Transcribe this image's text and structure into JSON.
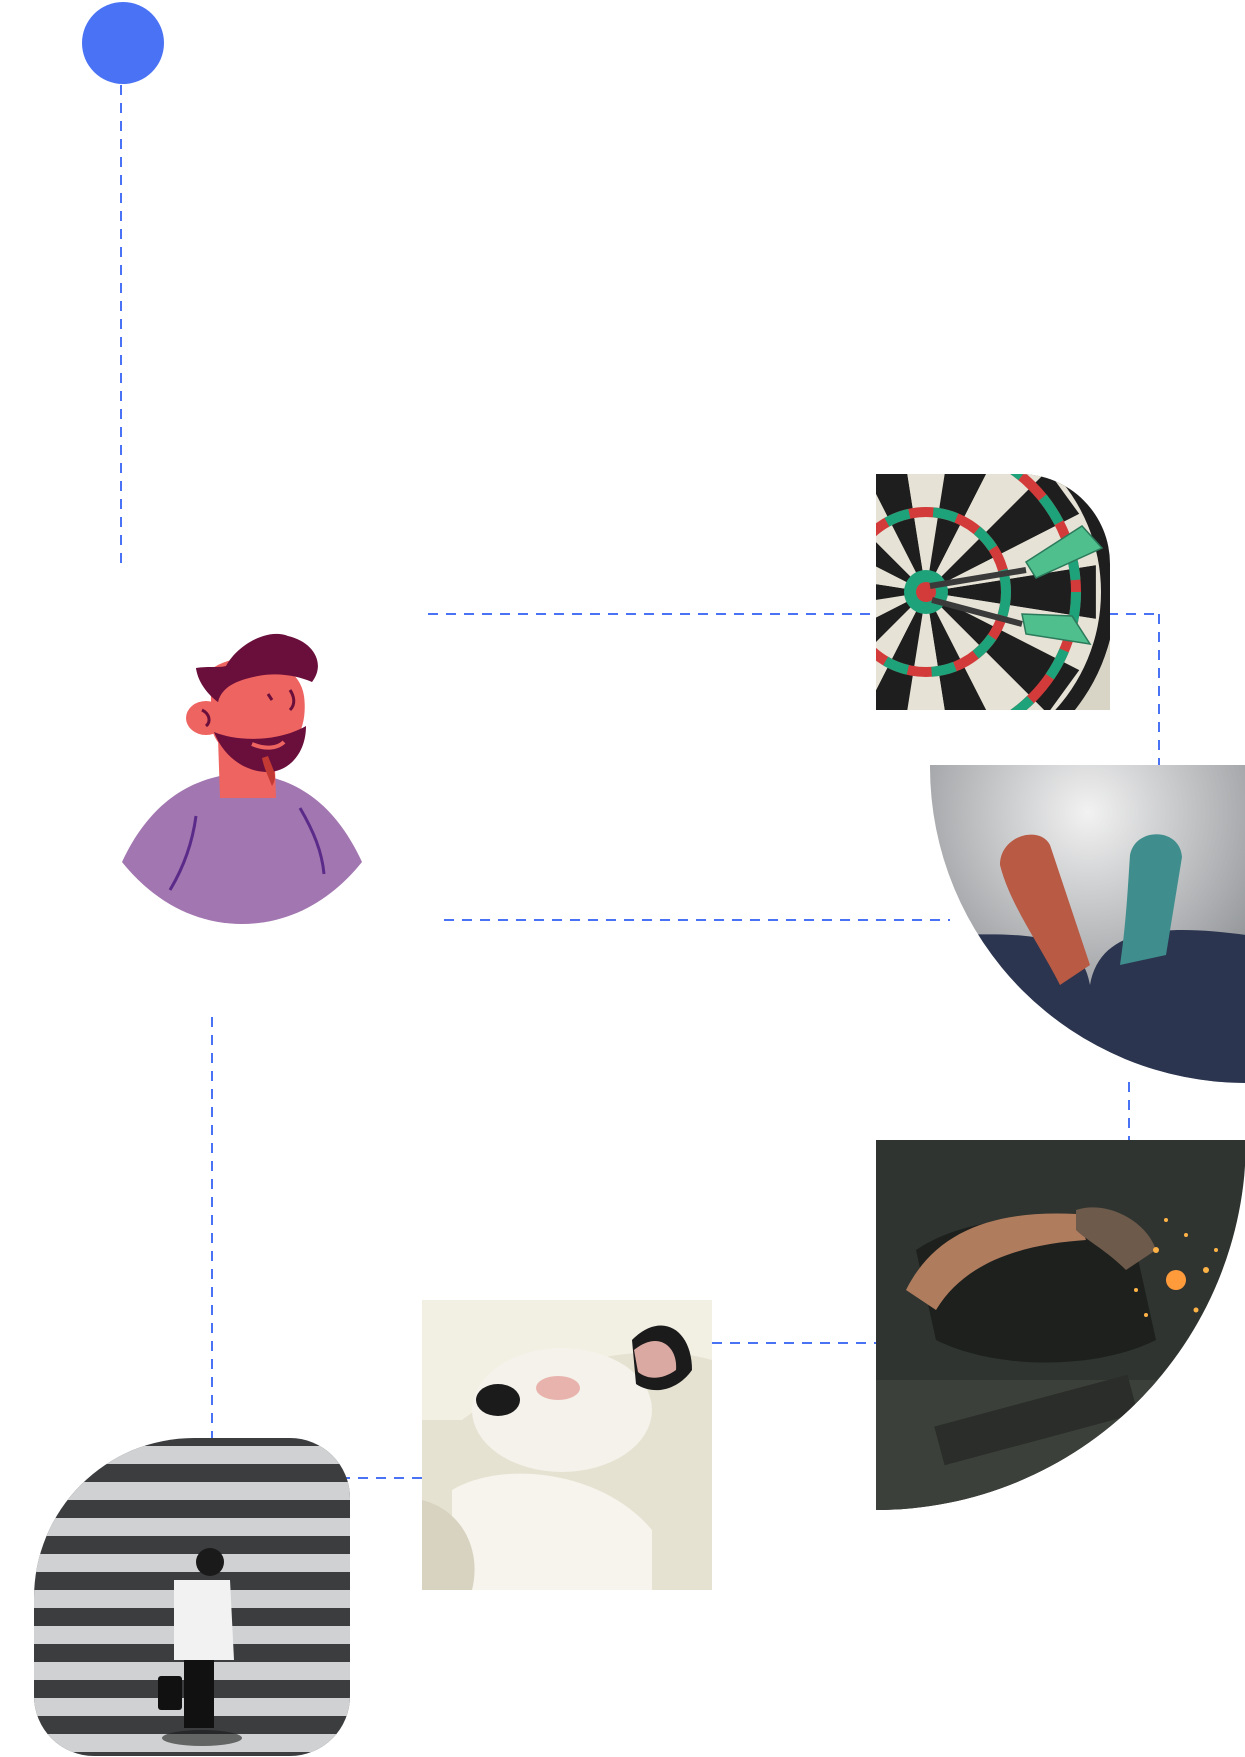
{
  "colors": {
    "accent": "#4a72f5",
    "background": "#ffffff",
    "avatar_shirt": "#a276b0",
    "avatar_skin": "#ee6461",
    "avatar_hair": "#6a0f3b"
  },
  "nodes": [
    {
      "id": "start-dot",
      "kind": "dot"
    },
    {
      "id": "avatar",
      "kind": "illustration",
      "icon": "bearded-man-avatar-icon"
    },
    {
      "id": "dartboard",
      "kind": "photo",
      "subject": "dartboard"
    },
    {
      "id": "socks",
      "kind": "photo",
      "subject": "socks"
    },
    {
      "id": "welder",
      "kind": "photo",
      "subject": "welder"
    },
    {
      "id": "dog",
      "kind": "photo",
      "subject": "dog"
    },
    {
      "id": "crosswalk",
      "kind": "photo",
      "subject": "crosswalk-walker"
    }
  ],
  "connectors": [
    {
      "from": "start-dot",
      "to": "avatar",
      "style": "dashed"
    },
    {
      "from": "avatar",
      "to": "dartboard",
      "style": "dashed"
    },
    {
      "from": "dartboard",
      "to": "socks",
      "style": "dashed"
    },
    {
      "from": "avatar",
      "to": "socks",
      "style": "dashed"
    },
    {
      "from": "socks",
      "to": "welder",
      "style": "dashed"
    },
    {
      "from": "welder",
      "to": "dog",
      "style": "dashed"
    },
    {
      "from": "dog",
      "to": "crosswalk",
      "style": "dashed"
    },
    {
      "from": "avatar",
      "to": "crosswalk",
      "style": "dashed"
    }
  ]
}
